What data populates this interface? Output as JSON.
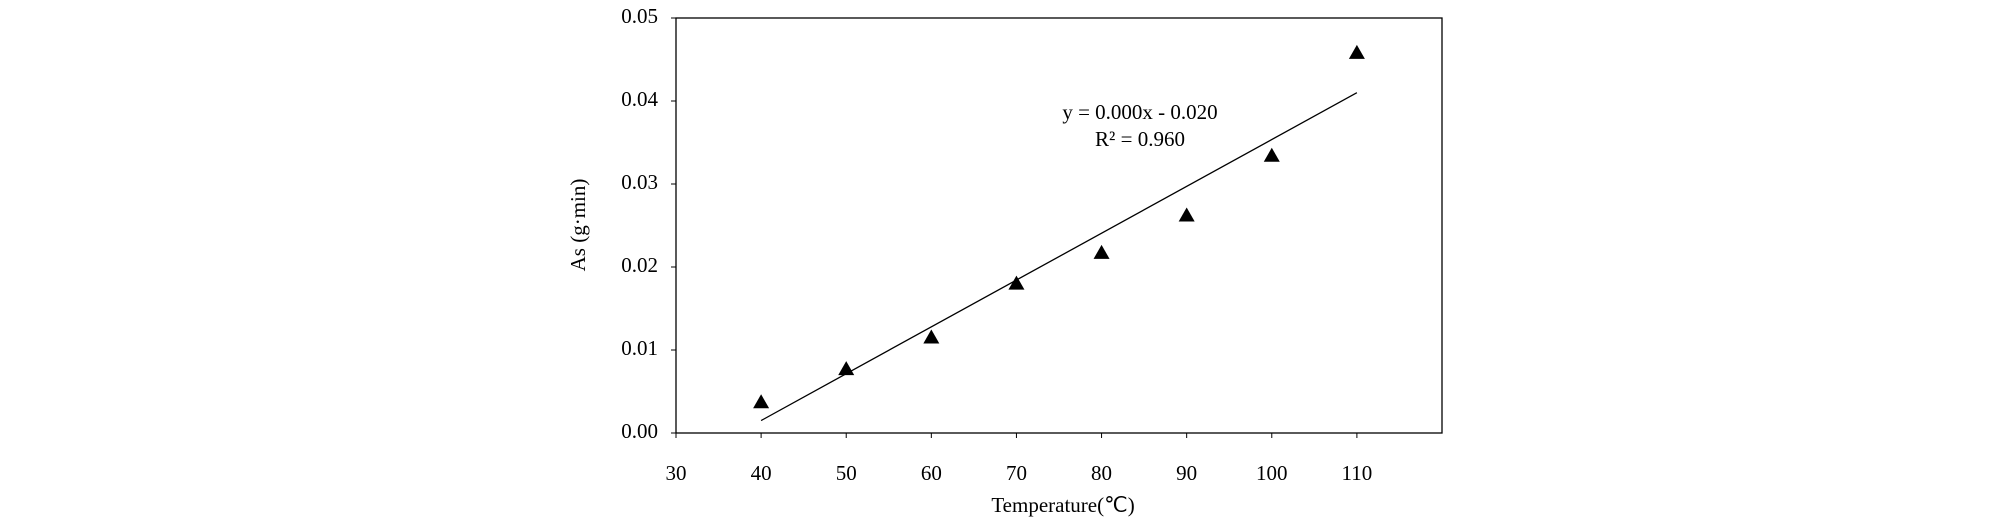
{
  "chart_data": {
    "type": "scatter",
    "x_label": "Temperature(℃)",
    "y_label": "As (g·min)",
    "x": [
      40,
      50,
      60,
      70,
      80,
      90,
      100,
      110
    ],
    "series": [
      {
        "color": "#000000",
        "values": [
          0.0037,
          0.0077,
          0.0115,
          0.018,
          0.0217,
          0.0262,
          0.0334,
          0.0458
        ]
      }
    ],
    "trendline": {
      "x": [
        40,
        110
      ],
      "y": [
        0.0015,
        0.041
      ]
    },
    "annotations": [
      "y = 0.000x - 0.020",
      "R² = 0.960"
    ],
    "xlim": [
      30,
      120
    ],
    "xticks": [
      30,
      40,
      50,
      60,
      70,
      80,
      90,
      100,
      110
    ],
    "ylim": [
      0,
      0.05
    ],
    "yticks": [
      {
        "value": 0,
        "label": "0.00"
      },
      {
        "value": 0.01,
        "label": "0.01"
      },
      {
        "value": 0.02,
        "label": "0.02"
      },
      {
        "value": 0.03,
        "label": "0.03"
      },
      {
        "value": 0.04,
        "label": "0.04"
      },
      {
        "value": 0.05,
        "label": "0.05"
      }
    ]
  }
}
